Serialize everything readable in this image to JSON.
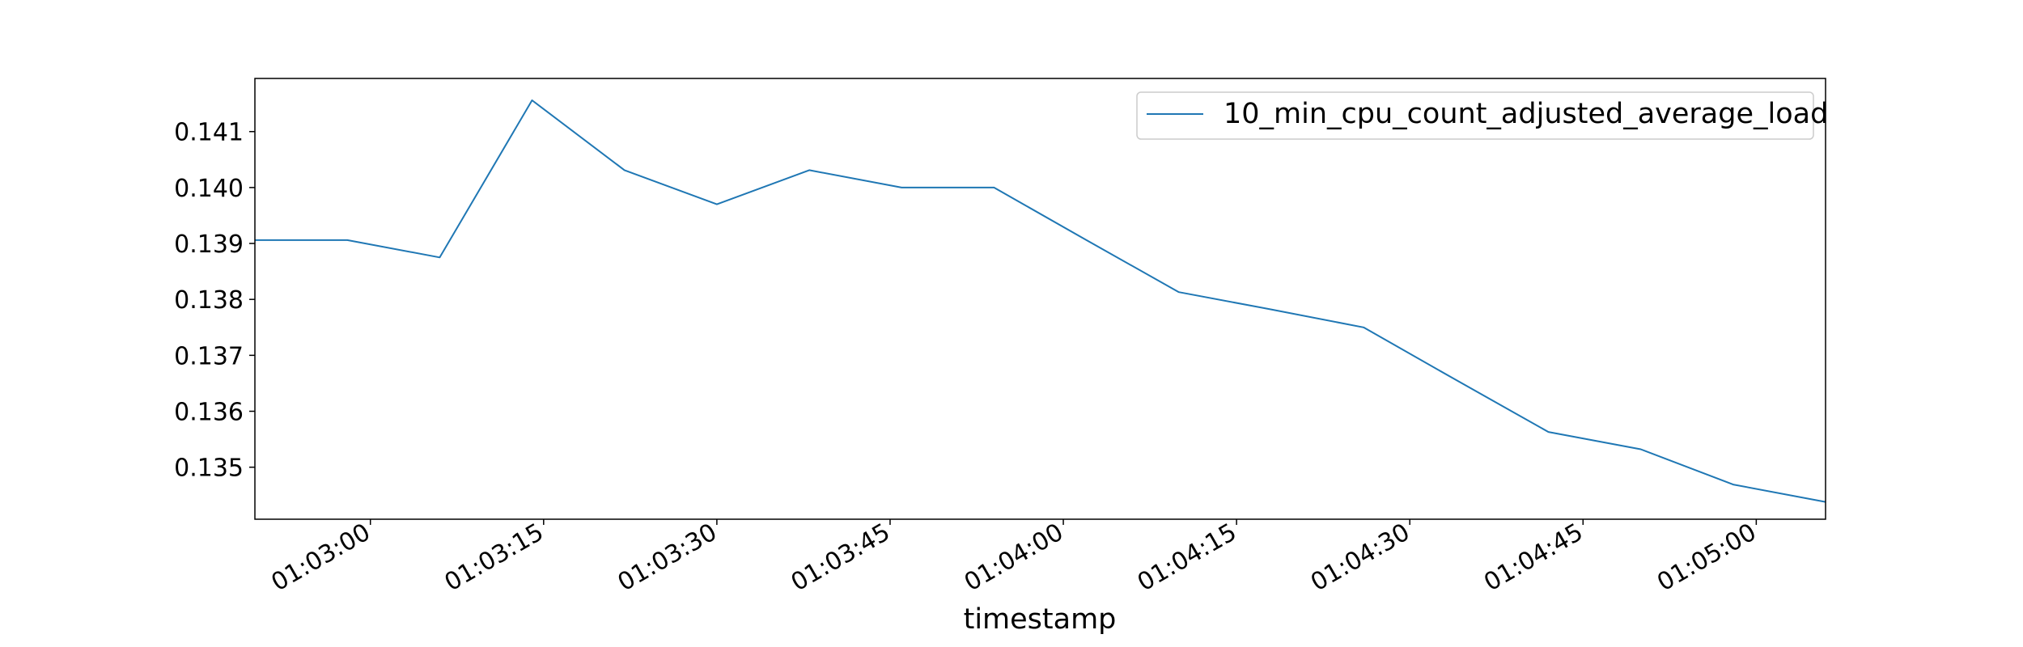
{
  "chart_data": {
    "type": "line",
    "title": "",
    "xlabel": "timestamp",
    "ylabel": "",
    "x_tick_labels": [
      "01:03:00",
      "01:03:15",
      "01:03:30",
      "01:03:45",
      "01:04:00",
      "01:04:15",
      "01:04:30",
      "01:04:45",
      "01:05:00"
    ],
    "y_tick_labels": [
      "0.135",
      "0.136",
      "0.137",
      "0.138",
      "0.139",
      "0.140",
      "0.141"
    ],
    "xlim": [
      "01:02:50",
      "01:05:06"
    ],
    "ylim": [
      0.13407,
      0.14195
    ],
    "grid": false,
    "legend": "top-right",
    "series": [
      {
        "name": "10_min_cpu_count_adjusted_average_load",
        "color": "#1f77b4",
        "x": [
          "01:02:50",
          "01:02:58",
          "01:03:06",
          "01:03:14",
          "01:03:22",
          "01:03:30",
          "01:03:38",
          "01:03:46",
          "01:03:54",
          "01:04:02",
          "01:04:10",
          "01:04:18",
          "01:04:26",
          "01:04:34",
          "01:04:42",
          "01:04:50",
          "01:04:58",
          "01:05:06"
        ],
        "values": [
          0.13906,
          0.13906,
          0.13875,
          0.14156,
          0.14031,
          0.1397,
          0.14031,
          0.14,
          0.14,
          0.13906,
          0.13813,
          0.13782,
          0.1375,
          0.13656,
          0.13563,
          0.13532,
          0.13469,
          0.13438
        ]
      }
    ]
  }
}
